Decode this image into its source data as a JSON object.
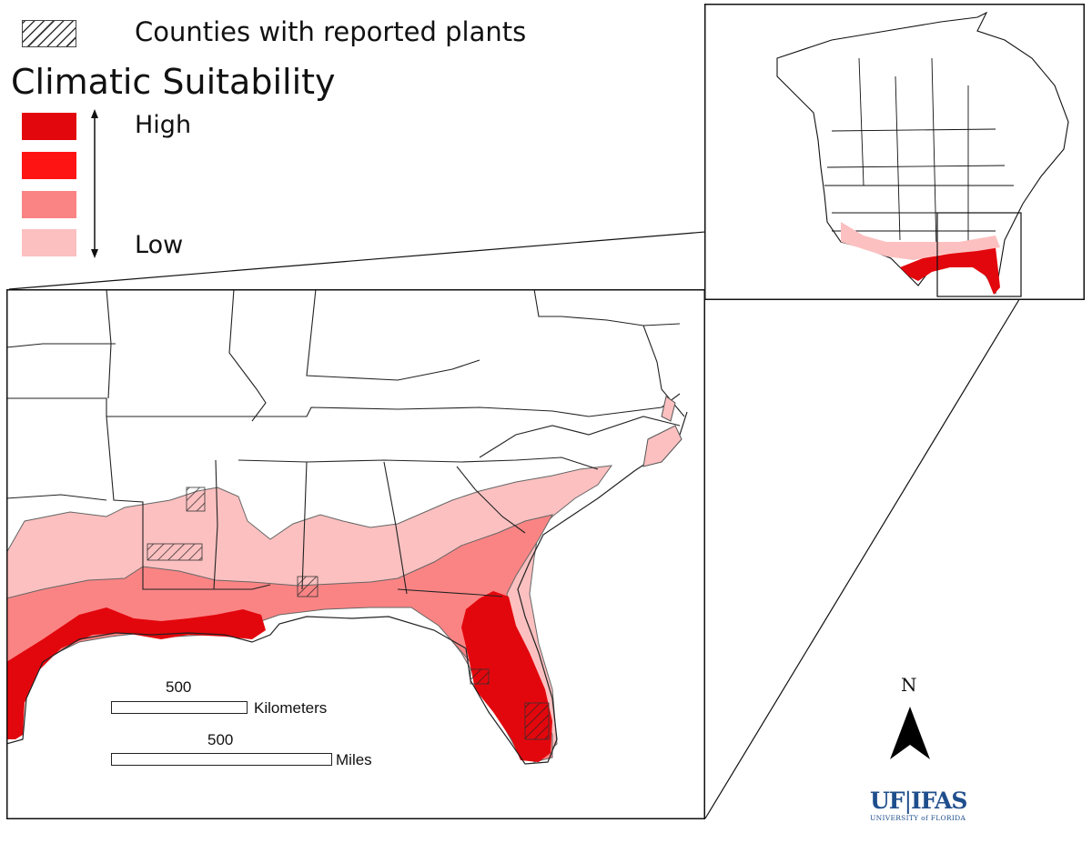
{
  "legend": {
    "hatch_label": "Counties with reported plants",
    "title": "Climatic Suitability",
    "high_label": "High",
    "low_label": "Low",
    "swatches": [
      {
        "level": "very-high",
        "color": "#e2070d"
      },
      {
        "level": "high",
        "color": "#ff1414"
      },
      {
        "level": "medium",
        "color": "#fa8484"
      },
      {
        "level": "low",
        "color": "#fcc0c0"
      }
    ]
  },
  "scalebars": {
    "km": {
      "value": "500",
      "unit": "Kilometers"
    },
    "miles": {
      "value": "500",
      "unit": "Miles"
    }
  },
  "north_arrow": {
    "label": "N"
  },
  "logo": {
    "primary": "UF",
    "secondary": "IFAS",
    "subtitle": "UNIVERSITY of FLORIDA",
    "color": "#1f4e8c"
  },
  "map": {
    "region": "Southeastern United States",
    "inset_region": "North America",
    "zone_colors": {
      "very_high": "#e2070d",
      "medium": "#fa8484",
      "low": "#fcc0c0",
      "boundary": "#222222"
    }
  }
}
